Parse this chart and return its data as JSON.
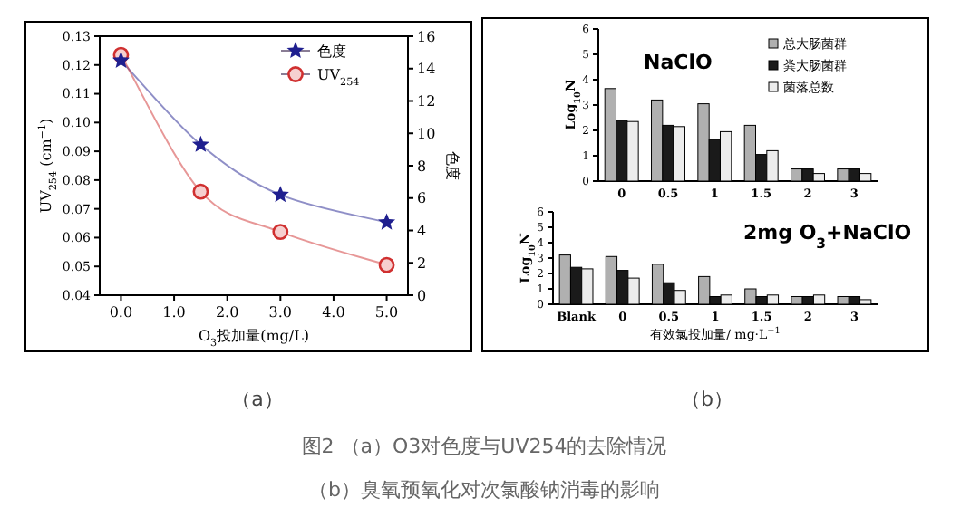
{
  "chart_data": [
    {
      "type": "line",
      "xlabel": "O$_{3}$投加量(mg/L)",
      "ylabel": "UV$_{254}$ (cm$^{−1}$)",
      "y2label": "色度",
      "x": [
        0,
        1.5,
        3,
        5
      ],
      "xlim": [
        -0.4,
        5.4
      ],
      "xticks": [
        {
          "value": 0,
          "label": "0.0"
        },
        {
          "value": 1,
          "label": "1.0"
        },
        {
          "value": 2,
          "label": "2.0"
        },
        {
          "value": 3,
          "label": "3.0"
        },
        {
          "value": 4,
          "label": "4.0"
        },
        {
          "value": 5,
          "label": "5.0"
        }
      ],
      "ylim": [
        0.04,
        0.13
      ],
      "yticks": [
        {
          "value": 0.04,
          "label": "0.04"
        },
        {
          "value": 0.05,
          "label": "0.05"
        },
        {
          "value": 0.06,
          "label": "0.06"
        },
        {
          "value": 0.07,
          "label": "0.07"
        },
        {
          "value": 0.08,
          "label": "0.08"
        },
        {
          "value": 0.09,
          "label": "0.09"
        },
        {
          "value": 0.1,
          "label": "0.10"
        },
        {
          "value": 0.11,
          "label": "0.11"
        },
        {
          "value": 0.12,
          "label": "0.12"
        },
        {
          "value": 0.13,
          "label": "0.13"
        }
      ],
      "y2lim": [
        0,
        16
      ],
      "y2ticks": [
        0,
        2,
        4,
        6,
        8,
        10,
        12,
        14,
        16
      ],
      "legend": "top right",
      "grid": false,
      "series": [
        {
          "name": "色度",
          "color": "#1f1f8f",
          "axis": "y2",
          "marker": "star",
          "values": [
            14.5,
            9.3,
            6.2,
            4.5
          ]
        },
        {
          "name": "UV$_{254}$",
          "color": "#d03030",
          "marker": "circle",
          "values": [
            0.1235,
            0.076,
            0.062,
            0.0505
          ]
        }
      ],
      "annotations": [
        "（a）",
        "图2 （a）O3对色度与UV254的去除情况",
        "（b）臭氧预氧化对次氯酸钠消毒的影响"
      ]
    },
    {
      "type": "bar",
      "title": "NaClO",
      "ylabel": "Log$_{10}$N",
      "categories": [
        "0",
        "0.5",
        "1",
        "1.5",
        "2",
        "3"
      ],
      "ylim": [
        0,
        6
      ],
      "yticks": [
        0,
        1,
        2,
        3,
        4,
        5,
        6
      ],
      "legend": "top right",
      "grid": false,
      "series": [
        {
          "name": "总大肠菌群",
          "color": "#b0b0b0",
          "values": [
            3.65,
            3.2,
            3.05,
            2.2,
            0.48,
            0.48
          ]
        },
        {
          "name": "粪大肠菌群",
          "color": "#1a1a1a",
          "values": [
            2.4,
            2.2,
            1.65,
            1.05,
            0.48,
            0.48
          ]
        },
        {
          "name": "菌落总数",
          "color": "#ececec",
          "values": [
            2.35,
            2.15,
            1.95,
            1.2,
            0.3,
            0.3
          ]
        }
      ],
      "annotations": [
        "（b）"
      ]
    },
    {
      "type": "bar",
      "title": "2mg O$_{3}$+NaClO",
      "ylabel": "Log$_{10}$N",
      "xlabel": "有效氯投加量/ mg·L$^{−1}$",
      "categories": [
        "Blank",
        "0",
        "0.5",
        "1",
        "1.5",
        "2",
        "3"
      ],
      "ylim": [
        0,
        6
      ],
      "yticks": [
        0,
        1,
        2,
        3,
        4,
        5,
        6
      ],
      "grid": false,
      "series": [
        {
          "color": "#b0b0b0",
          "values": [
            3.2,
            3.1,
            2.6,
            1.8,
            1.0,
            0.5,
            0.5
          ]
        },
        {
          "color": "#1a1a1a",
          "values": [
            2.4,
            2.2,
            1.4,
            0.5,
            0.5,
            0.5,
            0.5
          ]
        },
        {
          "color": "#ececec",
          "values": [
            2.3,
            1.7,
            0.9,
            0.6,
            0.6,
            0.6,
            0.3
          ]
        }
      ]
    }
  ]
}
